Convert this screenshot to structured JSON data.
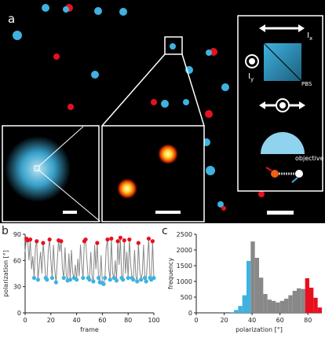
{
  "panel_a": {
    "label": "a",
    "ix": {
      "main": "I",
      "sub": "x"
    },
    "iy": {
      "main": "I",
      "sub": "y"
    },
    "pbs": "PBS",
    "objective": "objective"
  },
  "chart_data": [
    {
      "type": "line",
      "label": "b",
      "xlabel": "frame",
      "ylabel": "polarization [°]",
      "xlim": [
        0,
        100
      ],
      "xticks": [
        0,
        20,
        40,
        60,
        80,
        100
      ],
      "ylim": [
        0,
        90
      ],
      "yticks": [
        0,
        30,
        60,
        90
      ],
      "x": [
        0,
        1,
        2,
        3,
        4,
        5,
        6,
        7,
        8,
        9,
        10,
        11,
        12,
        13,
        14,
        15,
        16,
        17,
        18,
        19,
        20,
        21,
        22,
        23,
        24,
        25,
        26,
        27,
        28,
        29,
        30,
        31,
        32,
        33,
        34,
        35,
        36,
        37,
        38,
        39,
        40,
        41,
        42,
        43,
        44,
        45,
        46,
        47,
        48,
        49,
        50,
        51,
        52,
        53,
        54,
        55,
        56,
        57,
        58,
        59,
        60,
        61,
        62,
        63,
        64,
        65,
        66,
        67,
        68,
        69,
        70,
        71,
        72,
        73,
        74,
        75,
        76,
        77,
        78,
        79,
        80,
        81,
        82,
        83,
        84,
        85,
        86,
        87,
        88,
        89,
        90,
        91,
        92,
        93,
        94,
        95,
        96,
        97,
        98,
        99,
        100
      ],
      "series": [
        {
          "color": "#888888",
          "values": [
            70,
            85,
            83,
            60,
            84,
            50,
            65,
            40,
            75,
            82,
            38,
            55,
            70,
            45,
            80,
            62,
            40,
            38,
            72,
            84,
            60,
            40,
            78,
            50,
            35,
            60,
            83,
            70,
            82,
            50,
            40,
            75,
            42,
            37,
            68,
            38,
            72,
            45,
            40,
            55,
            38,
            62,
            42,
            78,
            55,
            40,
            82,
            84,
            60,
            40,
            38,
            70,
            42,
            36,
            78,
            50,
            80,
            40,
            35,
            66,
            34,
            33,
            40,
            75,
            84,
            50,
            38,
            85,
            45,
            40,
            60,
            37,
            82,
            55,
            86,
            40,
            38,
            83,
            45,
            70,
            40,
            84,
            55,
            40,
            38,
            72,
            42,
            36,
            80,
            50,
            38,
            45,
            78,
            40,
            36,
            60,
            85,
            40,
            38,
            82,
            40
          ]
        },
        {
          "color": "#e8101e",
          "marker": true,
          "x": [
            1,
            2,
            4,
            9,
            14,
            19,
            26,
            28,
            46,
            47,
            56,
            64,
            67,
            72,
            74,
            77,
            81,
            88,
            96,
            99
          ],
          "values": [
            85,
            83,
            84,
            82,
            80,
            84,
            83,
            82,
            82,
            84,
            80,
            84,
            85,
            82,
            86,
            83,
            84,
            80,
            85,
            82
          ]
        },
        {
          "color": "#3fb2e0",
          "marker": true,
          "x": [
            7,
            10,
            16,
            17,
            21,
            24,
            30,
            33,
            35,
            38,
            40,
            45,
            49,
            50,
            53,
            57,
            58,
            60,
            61,
            62,
            66,
            69,
            71,
            75,
            76,
            80,
            83,
            84,
            87,
            90,
            93,
            94,
            97,
            98,
            100
          ],
          "values": [
            40,
            38,
            40,
            38,
            40,
            35,
            40,
            37,
            38,
            40,
            38,
            40,
            40,
            38,
            36,
            40,
            35,
            34,
            33,
            40,
            38,
            40,
            37,
            40,
            38,
            40,
            40,
            38,
            36,
            38,
            40,
            36,
            40,
            38,
            40
          ]
        }
      ]
    },
    {
      "type": "histogram",
      "label": "c",
      "xlabel": "polarization [°]",
      "ylabel": "frequency",
      "xlim": [
        0,
        90
      ],
      "xticks": [
        0,
        20,
        40,
        60,
        80
      ],
      "ylim": [
        0,
        2500
      ],
      "yticks": [
        0,
        500,
        1000,
        1500,
        2000,
        2500
      ],
      "bins": [
        24,
        27,
        30,
        33,
        36,
        39,
        42,
        45,
        48,
        51,
        54,
        57,
        60,
        63,
        66,
        69,
        72,
        75,
        78,
        81,
        84,
        87,
        90
      ],
      "counts": [
        20,
        90,
        220,
        560,
        1650,
        2270,
        1750,
        1120,
        600,
        420,
        380,
        330,
        380,
        450,
        560,
        700,
        780,
        760,
        1100,
        800,
        480,
        170
      ],
      "colors": [
        "#3fb2e0",
        "#3fb2e0",
        "#3fb2e0",
        "#3fb2e0",
        "#3fb2e0",
        "#888888",
        "#888888",
        "#888888",
        "#888888",
        "#888888",
        "#888888",
        "#888888",
        "#888888",
        "#888888",
        "#888888",
        "#888888",
        "#888888",
        "#888888",
        "#e8101e",
        "#e8101e",
        "#e8101e",
        "#e8101e"
      ]
    }
  ]
}
